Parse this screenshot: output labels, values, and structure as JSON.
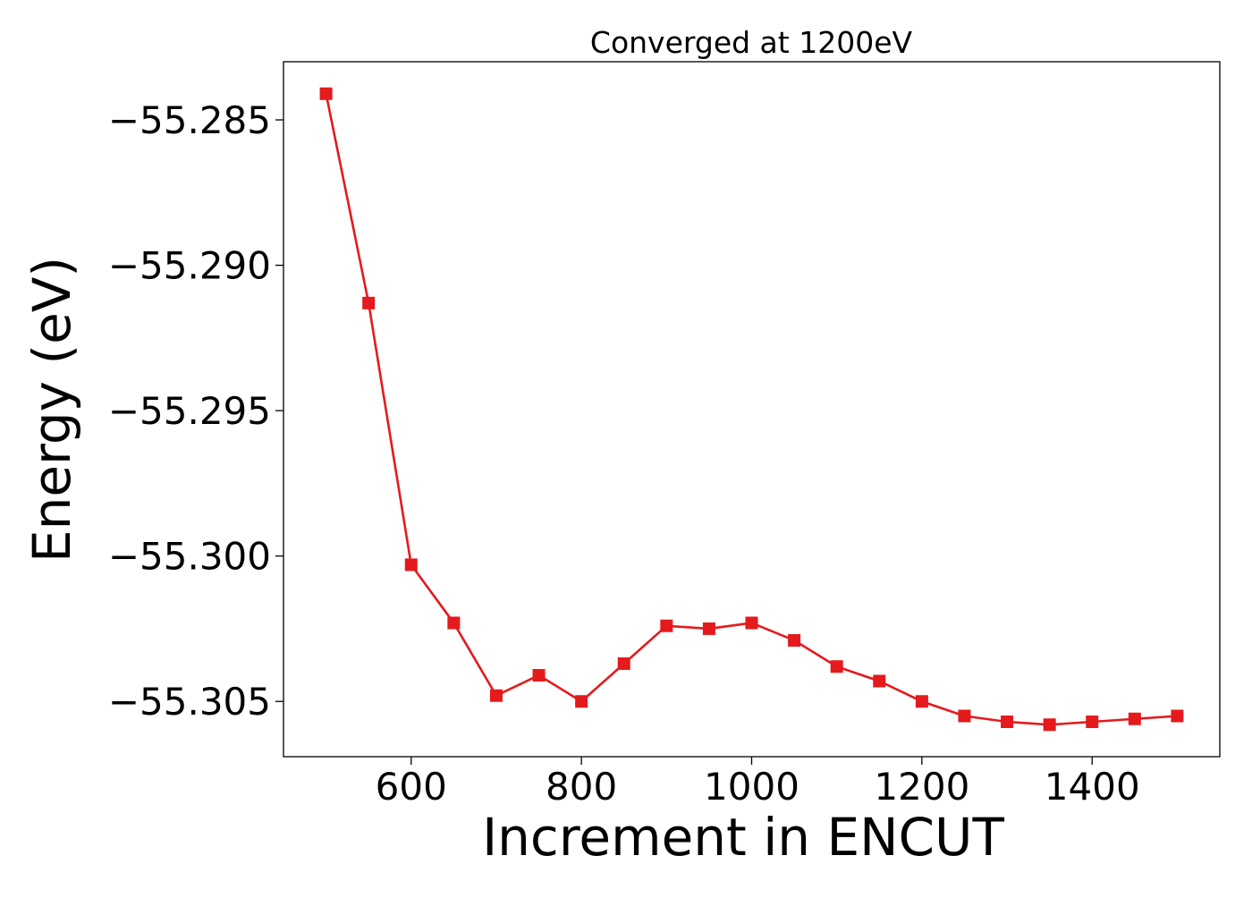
{
  "chart_data": {
    "type": "line",
    "title": "Converged at 1200eV",
    "xlabel": "Increment in ENCUT",
    "ylabel": "Energy (eV)",
    "xlim": [
      450,
      1550
    ],
    "ylim": [
      -55.3069,
      -55.283
    ],
    "xticks": [
      600,
      800,
      1000,
      1200,
      1400
    ],
    "xtick_labels": [
      "600",
      "800",
      "1000",
      "1200",
      "1400"
    ],
    "yticks": [
      -55.285,
      -55.29,
      -55.295,
      -55.3,
      -55.305
    ],
    "ytick_labels": [
      "−55.285",
      "−55.290",
      "−55.295",
      "−55.300",
      "−55.305"
    ],
    "grid": false,
    "series": [
      {
        "marker": "square",
        "color": "#e41a1c",
        "x": [
          500,
          550,
          600,
          650,
          700,
          750,
          800,
          850,
          900,
          950,
          1000,
          1050,
          1100,
          1150,
          1200,
          1250,
          1300,
          1350,
          1400,
          1450,
          1500
        ],
        "y": [
          -55.2841,
          -55.2913,
          -55.3003,
          -55.3023,
          -55.3048,
          -55.3041,
          -55.305,
          -55.3037,
          -55.3024,
          -55.3025,
          -55.3023,
          -55.3029,
          -55.3038,
          -55.3043,
          -55.305,
          -55.3055,
          -55.3057,
          -55.3058,
          -55.3057,
          -55.3056,
          -55.3055
        ]
      }
    ]
  }
}
